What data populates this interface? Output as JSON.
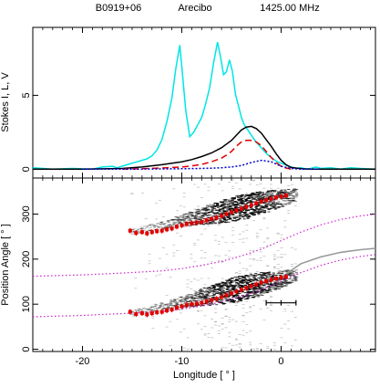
{
  "header": {
    "pulsar": "B0919+06",
    "telescope": "Arecibo",
    "frequency": "1425.00 MHz"
  },
  "colors": {
    "stokes_I": "#000000",
    "stokes_L": "#00e5e5",
    "stokes_V_red": "#e00000",
    "stokes_V_blue": "#0000cc",
    "pa_points": "#e00000",
    "pa_grid": "#cc22cc",
    "pa_fit": "#999999",
    "density": "#000000"
  },
  "chart_data": [
    {
      "type": "line",
      "panel": "profile",
      "ylabel": "Stokes I, L, V",
      "xlim": [
        -25,
        9.5
      ],
      "ylim": [
        -0.6,
        9.6
      ],
      "yticks": [
        0,
        5
      ],
      "xticks": [
        -20,
        -10,
        0
      ],
      "grid": false,
      "series": [
        {
          "key": "L",
          "style": "solid-cyan",
          "x": [
            -25,
            -23,
            -21,
            -19,
            -18,
            -17,
            -16.5,
            -15.5,
            -14.5,
            -14,
            -13.5,
            -13,
            -12.5,
            -12,
            -11.5,
            -11,
            -10.6,
            -10.2,
            -9.9,
            -9.6,
            -9.2,
            -8.8,
            -8.4,
            -8.0,
            -7.6,
            -7.2,
            -6.8,
            -6.4,
            -6.1,
            -5.8,
            -5.5,
            -5.2,
            -4.9,
            -4.6,
            -4.3,
            -4.0,
            -3.7,
            -3.4,
            -3.0,
            -2.6,
            -2.2,
            -1.8,
            -1.4,
            -1.0,
            -0.6,
            -0.2,
            0.2,
            0.6,
            1.0,
            1.5,
            2.0,
            2.5,
            3.0,
            3.5,
            4.0,
            5.0,
            6.0,
            7.0,
            8.0,
            9.5
          ],
          "y": [
            0.1,
            0.0,
            0.05,
            0.0,
            0.15,
            0.2,
            0.1,
            0.3,
            0.5,
            0.6,
            0.7,
            0.9,
            1.3,
            2.0,
            3.2,
            4.8,
            6.8,
            8.4,
            6.2,
            4.0,
            2.2,
            2.5,
            3.0,
            3.5,
            4.4,
            5.5,
            7.2,
            8.6,
            7.6,
            6.4,
            6.6,
            7.4,
            6.6,
            5.1,
            4.3,
            3.5,
            3.0,
            2.7,
            2.3,
            1.9,
            1.6,
            1.3,
            1.0,
            0.8,
            0.6,
            0.45,
            0.35,
            0.25,
            0.15,
            0.05,
            0.1,
            0.0,
            0.05,
            0.15,
            0.05,
            0.1,
            0.0,
            0.1,
            0.05,
            0.0
          ]
        },
        {
          "key": "I",
          "style": "solid-black",
          "x": [
            -25,
            -20,
            -16,
            -14,
            -12,
            -10,
            -9,
            -8,
            -7,
            -6,
            -5,
            -4.5,
            -4,
            -3.5,
            -3,
            -2.5,
            -2,
            -1.5,
            -1,
            -0.5,
            0,
            0.5,
            1,
            2,
            3,
            4,
            6,
            8,
            9.5
          ],
          "y": [
            0,
            0.0,
            0.05,
            0.15,
            0.3,
            0.5,
            0.65,
            0.85,
            1.1,
            1.45,
            1.95,
            2.3,
            2.65,
            2.85,
            2.9,
            2.75,
            2.45,
            2.0,
            1.55,
            1.05,
            0.6,
            0.3,
            0.12,
            0.03,
            0.0,
            0.0,
            0.0,
            0.0,
            0.0
          ]
        },
        {
          "key": "V",
          "style": "dashed-red",
          "x": [
            -16,
            -14,
            -12,
            -10,
            -9,
            -8,
            -7,
            -6,
            -5.5,
            -5,
            -4.5,
            -4,
            -3.5,
            -3,
            -2.5,
            -2,
            -1.5,
            -1,
            -0.5,
            0,
            0.5,
            1
          ],
          "y": [
            0.0,
            0.03,
            0.08,
            0.15,
            0.22,
            0.32,
            0.5,
            0.75,
            0.95,
            1.2,
            1.55,
            1.85,
            1.95,
            1.95,
            1.85,
            1.6,
            1.2,
            0.8,
            0.45,
            0.2,
            0.08,
            0.0
          ]
        },
        {
          "key": "V2",
          "style": "dotted-blue",
          "x": [
            -20,
            -15,
            -12,
            -10,
            -8,
            -7,
            -6,
            -5,
            -4,
            -3,
            -2,
            -1,
            0,
            1,
            2,
            4
          ],
          "y": [
            0,
            0.0,
            0.02,
            0.03,
            0.05,
            0.07,
            0.1,
            0.15,
            0.25,
            0.45,
            0.6,
            0.5,
            0.2,
            0.05,
            0.0,
            0.0
          ]
        }
      ]
    },
    {
      "type": "scatter",
      "panel": "position-angle",
      "xlabel": "Longitude [ ° ]",
      "ylabel": "Position Angle [ ° ]",
      "xlim": [
        -25,
        9.5
      ],
      "ylim": [
        -5,
        380
      ],
      "yticks": [
        0,
        100,
        200,
        300
      ],
      "xticks": [
        -20,
        -10,
        0
      ],
      "grid": false,
      "pa_x": [
        -15.2,
        -14.6,
        -14.0,
        -13.5,
        -13.0,
        -12.5,
        -12.0,
        -11.5,
        -11.0,
        -10.5,
        -10.0,
        -9.5,
        -9.0,
        -8.5,
        -8.0,
        -7.5,
        -7.0,
        -6.5,
        -6.0,
        -5.5,
        -5.0,
        -4.5,
        -4.0,
        -3.5,
        -3.0,
        -2.5,
        -2.0,
        -1.5,
        -1.0,
        -0.5,
        0.0,
        0.5
      ],
      "pa_y": [
        83,
        78,
        80,
        77,
        80,
        82,
        83,
        86,
        88,
        92,
        95,
        98,
        100,
        101,
        103,
        106,
        109,
        112,
        116,
        120,
        124,
        128,
        132,
        136,
        140,
        144,
        148,
        151,
        154,
        157,
        159,
        161
      ],
      "errorbar": {
        "x": 0.0,
        "y": 103,
        "xerr": 1.5,
        "yerr": 6
      },
      "fit_x": [
        -25,
        -20,
        -15,
        -10,
        -6,
        -3,
        -1,
        0,
        2,
        4,
        6,
        8,
        9.5
      ],
      "fit_y": [
        -5,
        0,
        3,
        7,
        12,
        22,
        40,
        160,
        190,
        205,
        215,
        221,
        224
      ],
      "dotted_curves": [
        {
          "x": [
            -25,
            -20,
            -16,
            -12,
            -10,
            -8,
            -6,
            -4,
            -2,
            0,
            2,
            4,
            6,
            8,
            9.5
          ],
          "y": [
            72,
            75,
            79,
            84,
            89,
            96,
            105,
            117,
            132,
            151,
            170,
            186,
            198,
            206,
            210
          ]
        },
        {
          "x": [
            -25,
            -20,
            -16,
            -12,
            -10,
            -8,
            -6,
            -4,
            -2,
            0,
            2,
            4,
            6,
            8,
            9.5
          ],
          "y": [
            162,
            165,
            169,
            174,
            179,
            186,
            195,
            207,
            222,
            241,
            260,
            276,
            288,
            296,
            300
          ]
        }
      ]
    }
  ]
}
